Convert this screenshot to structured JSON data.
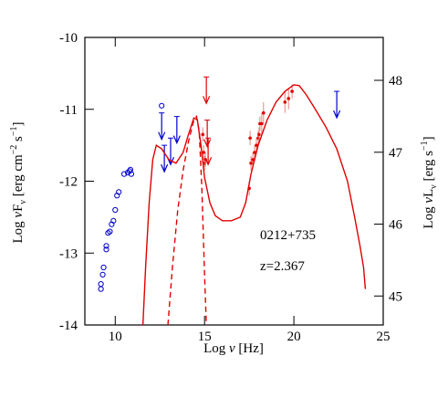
{
  "chart_data": {
    "type": "scatter",
    "xlabel": [
      "Log ",
      "ν",
      " [Hz]"
    ],
    "ylabel": [
      "Log ",
      "ν",
      "F",
      "ν",
      " [erg cm",
      "−2",
      " s",
      "−1",
      "]"
    ],
    "y2label": [
      "Log ",
      "ν",
      "L",
      "ν",
      "  [erg s",
      "−1",
      "]"
    ],
    "annotations": [
      "0212+735",
      "z=2.367"
    ],
    "xlim": [
      8.3,
      25
    ],
    "xticks": [
      10,
      15,
      20,
      25
    ],
    "ylim": [
      -14,
      -10
    ],
    "yticks": [
      -14,
      -13,
      -12,
      -11,
      -10
    ],
    "y2lim": [
      44.597,
      48.597
    ],
    "y2ticks": [
      45,
      46,
      47,
      48
    ],
    "series": [
      {
        "marker": "open-circle",
        "color": "#0000cc",
        "x": [
          9.2,
          9.2,
          9.3,
          9.35,
          9.5,
          9.5,
          9.6,
          9.7,
          9.8,
          9.9,
          10.0,
          10.1,
          10.2,
          10.5,
          10.7,
          10.8,
          10.85,
          10.9,
          12.6
        ],
        "y": [
          -13.5,
          -13.43,
          -13.3,
          -13.2,
          -12.95,
          -12.9,
          -12.72,
          -12.7,
          -12.6,
          -12.55,
          -12.4,
          -12.2,
          -12.15,
          -11.9,
          -11.88,
          -11.86,
          -11.84,
          -11.9,
          -10.95
        ]
      },
      {
        "marker": "upper-limit",
        "color": "#0000cc",
        "x": [
          12.6,
          12.75,
          13.1,
          13.45,
          22.4
        ],
        "y": [
          -11.05,
          -11.5,
          -11.4,
          -11.1,
          -10.75
        ]
      },
      {
        "marker": "upper-limit",
        "color": "#e00000",
        "x": [
          15.1,
          15.15,
          15.2
        ],
        "y": [
          -10.55,
          -11.15,
          -11.4
        ]
      },
      {
        "marker": "point",
        "color": "#e00000",
        "x": [
          14.9,
          14.95,
          15.0,
          15.05,
          17.5,
          17.55,
          17.6,
          17.7,
          17.8,
          17.9,
          18.0,
          18.05,
          18.1,
          18.2,
          18.3,
          19.5,
          19.7,
          19.9
        ],
        "y": [
          -11.35,
          -11.6,
          -11.75,
          -11.7,
          -12.1,
          -11.4,
          -11.75,
          -11.7,
          -11.6,
          -11.5,
          -11.4,
          -11.35,
          -11.2,
          -11.2,
          -11.05,
          -10.9,
          -10.85,
          -10.75
        ],
        "err": [
          0.1,
          0.1,
          0.1,
          0.1,
          0.1,
          0.1,
          0.1,
          0.1,
          0.1,
          0.1,
          0.1,
          0.1,
          0.1,
          0.15,
          0.15,
          0.15,
          0.15,
          0.1
        ]
      },
      {
        "marker": "line",
        "dash": false,
        "color": "#e00000",
        "x": [
          11.55,
          11.7,
          11.9,
          12.1,
          12.3,
          12.6,
          13.0,
          13.4,
          13.8,
          14.1,
          14.4,
          14.6,
          14.8,
          15.0,
          15.3,
          15.6,
          16.0,
          16.5,
          17.0,
          17.3,
          17.6,
          18.0,
          18.5,
          19.0,
          19.5,
          20.0,
          20.3,
          20.7,
          21.2,
          21.8,
          22.4,
          23.0,
          23.4,
          23.7,
          23.9,
          24.0
        ],
        "y": [
          -14.0,
          -13.2,
          -12.3,
          -11.7,
          -11.5,
          -11.55,
          -11.7,
          -11.75,
          -11.6,
          -11.35,
          -11.12,
          -11.15,
          -11.5,
          -11.95,
          -12.3,
          -12.48,
          -12.55,
          -12.55,
          -12.5,
          -12.3,
          -11.9,
          -11.5,
          -11.15,
          -10.9,
          -10.75,
          -10.66,
          -10.67,
          -10.8,
          -11.0,
          -11.25,
          -11.55,
          -12.0,
          -12.5,
          -12.9,
          -13.2,
          -13.5
        ]
      },
      {
        "marker": "line",
        "dash": true,
        "color": "#e00000",
        "x": [
          12.95,
          13.2,
          13.5,
          13.8,
          14.1,
          14.4,
          14.55,
          14.7,
          14.85,
          15.0,
          15.1
        ],
        "y": [
          -14.0,
          -13.2,
          -12.4,
          -11.85,
          -11.45,
          -11.15,
          -11.1,
          -11.3,
          -12.1,
          -13.3,
          -14.0
        ]
      }
    ]
  }
}
